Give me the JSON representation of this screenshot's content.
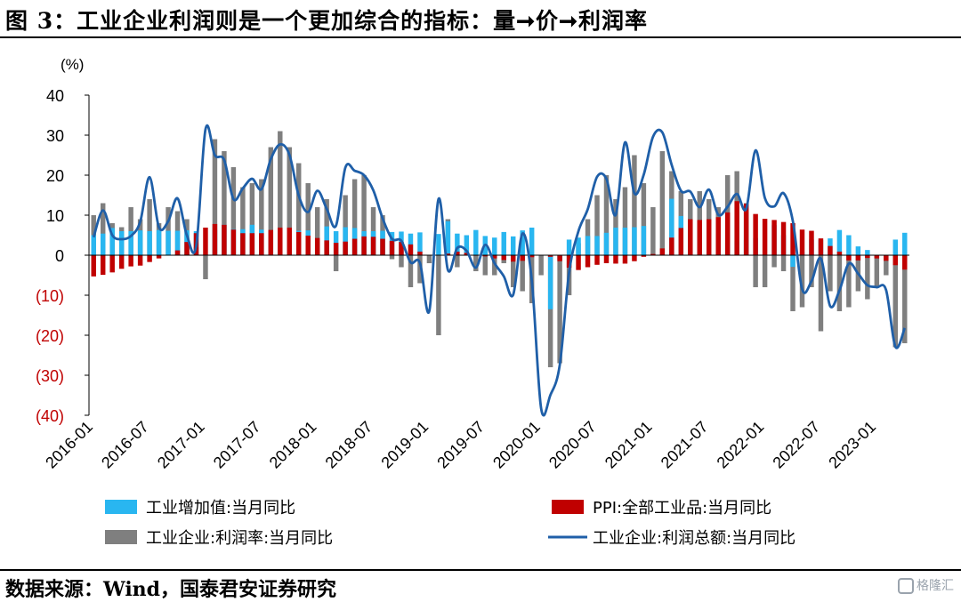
{
  "header": {
    "title": "图 3：工业企业利润则是一个更加综合的指标：量➞价➞利润率"
  },
  "footer": {
    "source": "数据来源：Wind，国泰君安证券研究",
    "watermark": "格隆汇"
  },
  "chart_data": {
    "type": "bar",
    "unit_label": "(%)",
    "ylim": [
      -40,
      40
    ],
    "yticks": [
      40,
      30,
      20,
      10,
      0,
      -10,
      -20,
      -30,
      -40
    ],
    "ytick_labels": [
      "40",
      "30",
      "20",
      "10",
      "0",
      "(10)",
      "(20)",
      "(30)",
      "(40)"
    ],
    "x_tick_labels": [
      "2016-01",
      "2016-07",
      "2017-01",
      "2017-07",
      "2018-01",
      "2018-07",
      "2019-01",
      "2019-07",
      "2020-01",
      "2020-07",
      "2021-01",
      "2021-07",
      "2022-01",
      "2022-07",
      "2023-01"
    ],
    "months": [
      "2016-01",
      "2016-02",
      "2016-03",
      "2016-04",
      "2016-05",
      "2016-06",
      "2016-07",
      "2016-08",
      "2016-09",
      "2016-10",
      "2016-11",
      "2016-12",
      "2017-01",
      "2017-02",
      "2017-03",
      "2017-04",
      "2017-05",
      "2017-06",
      "2017-07",
      "2017-08",
      "2017-09",
      "2017-10",
      "2017-11",
      "2017-12",
      "2018-01",
      "2018-02",
      "2018-03",
      "2018-04",
      "2018-05",
      "2018-06",
      "2018-07",
      "2018-08",
      "2018-09",
      "2018-10",
      "2018-11",
      "2018-12",
      "2019-01",
      "2019-02",
      "2019-03",
      "2019-04",
      "2019-05",
      "2019-06",
      "2019-07",
      "2019-08",
      "2019-09",
      "2019-10",
      "2019-11",
      "2019-12",
      "2020-01",
      "2020-02",
      "2020-03",
      "2020-04",
      "2020-05",
      "2020-06",
      "2020-07",
      "2020-08",
      "2020-09",
      "2020-10",
      "2020-11",
      "2020-12",
      "2021-01",
      "2021-02",
      "2021-03",
      "2021-04",
      "2021-05",
      "2021-06",
      "2021-07",
      "2021-08",
      "2021-09",
      "2021-10",
      "2021-11",
      "2021-12",
      "2022-01",
      "2022-02",
      "2022-03",
      "2022-04",
      "2022-05",
      "2022-06",
      "2022-07",
      "2022-08",
      "2022-09",
      "2022-10",
      "2022-11",
      "2022-12",
      "2023-01",
      "2023-02",
      "2023-03",
      "2023-04"
    ],
    "series": [
      {
        "name": "工业增加值:当月同比",
        "type": "bar",
        "color": "#29b6f0",
        "values": [
          5.0,
          5.4,
          6.8,
          6.0,
          6.0,
          6.2,
          6.0,
          6.3,
          6.1,
          6.1,
          6.2,
          6.0,
          null,
          6.3,
          7.6,
          6.5,
          6.5,
          7.6,
          6.4,
          6.0,
          6.6,
          6.2,
          6.1,
          6.2,
          null,
          7.2,
          6.0,
          7.0,
          6.8,
          6.0,
          6.0,
          6.1,
          5.8,
          5.9,
          5.4,
          5.7,
          null,
          5.3,
          8.5,
          5.4,
          5.0,
          6.3,
          4.8,
          4.4,
          5.8,
          4.7,
          6.2,
          6.9,
          null,
          -13.5,
          -1.1,
          3.9,
          4.4,
          4.8,
          4.8,
          5.6,
          6.9,
          6.9,
          7.0,
          7.3,
          null,
          null,
          14.1,
          9.8,
          8.8,
          8.3,
          6.4,
          5.3,
          3.1,
          3.5,
          3.8,
          4.3,
          null,
          7.5,
          5.0,
          -2.9,
          0.7,
          3.9,
          3.8,
          4.2,
          6.3,
          5.0,
          2.2,
          1.3,
          null,
          null,
          3.9,
          5.6
        ]
      },
      {
        "name": "PPI:全部工业品:当月同比",
        "type": "bar",
        "color": "#c00000",
        "values": [
          -5.3,
          -4.9,
          -4.3,
          -3.4,
          -2.8,
          -2.6,
          -1.7,
          -0.8,
          0.1,
          1.2,
          3.3,
          5.5,
          6.9,
          7.8,
          7.6,
          6.4,
          5.5,
          5.5,
          5.5,
          6.3,
          6.9,
          6.9,
          5.8,
          4.9,
          4.3,
          3.7,
          3.1,
          3.4,
          4.1,
          4.7,
          4.6,
          4.1,
          3.6,
          3.3,
          2.7,
          0.9,
          0.1,
          0.1,
          0.4,
          0.9,
          0.6,
          0.0,
          -0.3,
          -0.8,
          -1.2,
          -1.6,
          -1.4,
          -0.5,
          0.1,
          -0.4,
          -1.5,
          -3.1,
          -3.7,
          -3.0,
          -2.4,
          -2.0,
          -2.1,
          -2.1,
          -1.5,
          -0.4,
          0.3,
          1.7,
          4.4,
          6.8,
          9.0,
          8.8,
          9.0,
          9.5,
          10.7,
          13.5,
          12.9,
          10.3,
          9.1,
          8.8,
          8.3,
          8.0,
          6.4,
          6.1,
          4.2,
          2.3,
          0.9,
          -1.3,
          -1.3,
          -0.7,
          -0.8,
          -1.4,
          -2.5,
          -3.6
        ]
      },
      {
        "name": "工业企业:利润率:当月同比",
        "type": "bar",
        "color": "#7f7f7f",
        "values": [
          10,
          13,
          8,
          7,
          12,
          9,
          14,
          8,
          12,
          11,
          9,
          2,
          -6,
          29,
          26,
          22,
          17,
          18,
          19,
          27,
          31,
          27,
          23,
          18,
          12,
          14,
          -4,
          15,
          19,
          20,
          12,
          10,
          -1,
          -3,
          -8,
          -7,
          -2,
          -20,
          9,
          -3,
          2,
          -4,
          -5,
          -5,
          -2,
          -8,
          -9,
          -12,
          -5,
          -28,
          -27,
          -10,
          3,
          9,
          15,
          20,
          14,
          17,
          25,
          18,
          12,
          26,
          21,
          16,
          14,
          16,
          14,
          12,
          20,
          21,
          13,
          -8,
          -8,
          -3,
          -4,
          -14,
          -13,
          -8,
          -19,
          -9,
          -14,
          -13,
          -9,
          -11,
          -8,
          -5,
          -23,
          -22
        ]
      },
      {
        "name": "工业企业:利润总额:当月同比",
        "type": "line",
        "color": "#1f5fa8",
        "values": [
          4.5,
          11.2,
          5.0,
          4.0,
          4.8,
          8.4,
          19.5,
          7.0,
          8.5,
          14.2,
          5.0,
          2.3,
          31.5,
          25.0,
          23.8,
          14.0,
          16.7,
          19.1,
          16.5,
          24.0,
          27.7,
          25.1,
          14.9,
          10.8,
          16.1,
          11.6,
          7.4,
          21.9,
          21.1,
          20.0,
          16.2,
          9.2,
          4.1,
          3.6,
          -1.8,
          -1.9,
          -14.0,
          14.1,
          -3.7,
          1.8,
          1.1,
          -3.1,
          2.6,
          -2.0,
          -5.3,
          -9.9,
          5.4,
          -6.3,
          -38.3,
          -34.9,
          -27.4,
          -4.3,
          6.0,
          11.5,
          19.6,
          19.1,
          10.1,
          28.2,
          15.5,
          20.1,
          29.6,
          30.7,
          22.6,
          16.1,
          15.9,
          12.0,
          16.4,
          10.1,
          12.1,
          15.3,
          11.6,
          26.2,
          14.3,
          12.2,
          15.5,
          8.5,
          -8.5,
          -6.5,
          -0.8,
          -12.7,
          -8.8,
          -2.1,
          -4.6,
          -7.5,
          -8.0,
          -8.7,
          -22.9,
          -18.2
        ]
      }
    ],
    "legend_placement": "bottom",
    "grid": false
  }
}
